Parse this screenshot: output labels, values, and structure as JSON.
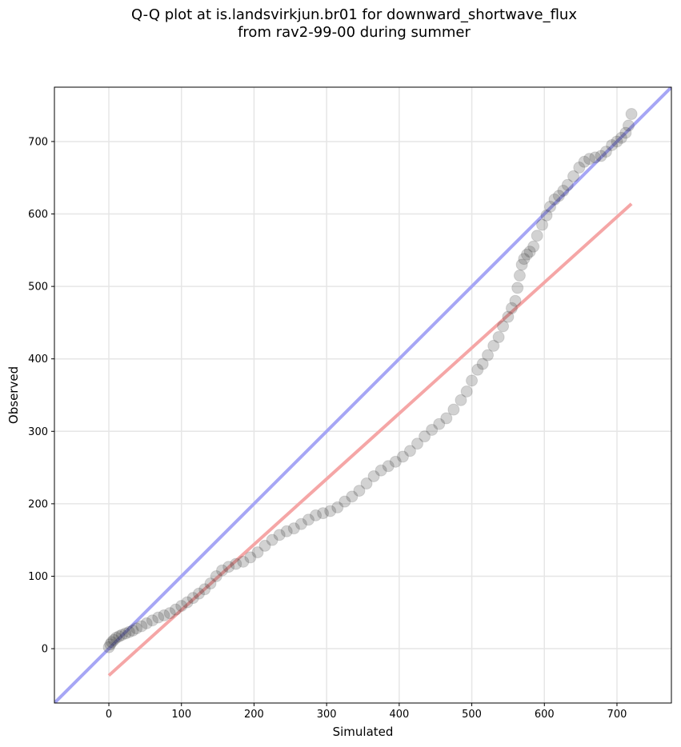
{
  "chart_data": {
    "type": "scatter",
    "title_line1": "Q-Q plot at is.landsvirkjun.br01 for downward_shortwave_flux",
    "title_line2": "from rav2-99-00 during summer",
    "xlabel": "Simulated",
    "ylabel": "Observed",
    "xlim": [
      -75,
      775
    ],
    "ylim": [
      -75,
      775
    ],
    "xticks": [
      0,
      100,
      200,
      300,
      400,
      500,
      600,
      700
    ],
    "yticks": [
      0,
      100,
      200,
      300,
      400,
      500,
      600,
      700
    ],
    "grid": true,
    "colors": {
      "identity_line": "#a6a6f5",
      "fit_line": "#f5a6a6",
      "points": "#333333",
      "grid": "#e6e6e6"
    },
    "identity_line": {
      "x": [
        -75,
        775
      ],
      "y": [
        -75,
        775
      ]
    },
    "fit_line": {
      "x": [
        0,
        720
      ],
      "y": [
        -37,
        614
      ]
    },
    "points": {
      "x": [
        0,
        2,
        4,
        7,
        10,
        14,
        18,
        23,
        28,
        33,
        38,
        45,
        52,
        60,
        68,
        76,
        84,
        92,
        100,
        108,
        116,
        124,
        132,
        140,
        148,
        156,
        165,
        175,
        185,
        195,
        205,
        215,
        225,
        235,
        245,
        255,
        265,
        275,
        285,
        295,
        305,
        315,
        325,
        335,
        345,
        355,
        365,
        375,
        385,
        395,
        405,
        415,
        425,
        435,
        445,
        455,
        465,
        475,
        485,
        493,
        500,
        508,
        515,
        522,
        530,
        537,
        543,
        550,
        555,
        560,
        563,
        566,
        569,
        572,
        576,
        580,
        585,
        590,
        597,
        603,
        608,
        614,
        620,
        626,
        632,
        640,
        648,
        655,
        662,
        670,
        678,
        685,
        693,
        700,
        706,
        712,
        716,
        720
      ],
      "y": [
        2,
        6,
        9,
        12,
        15,
        17,
        19,
        21,
        23,
        25,
        28,
        31,
        35,
        39,
        43,
        46,
        49,
        54,
        59,
        64,
        70,
        76,
        82,
        90,
        100,
        108,
        113,
        117,
        120,
        126,
        133,
        142,
        150,
        157,
        162,
        166,
        172,
        178,
        184,
        187,
        190,
        195,
        203,
        210,
        218,
        228,
        238,
        246,
        252,
        258,
        265,
        273,
        283,
        293,
        302,
        310,
        318,
        330,
        343,
        355,
        370,
        385,
        393,
        405,
        418,
        430,
        445,
        458,
        470,
        480,
        498,
        515,
        530,
        538,
        544,
        548,
        555,
        570,
        585,
        598,
        610,
        620,
        625,
        632,
        640,
        652,
        664,
        672,
        676,
        678,
        680,
        686,
        695,
        700,
        705,
        712,
        722,
        738
      ]
    }
  }
}
